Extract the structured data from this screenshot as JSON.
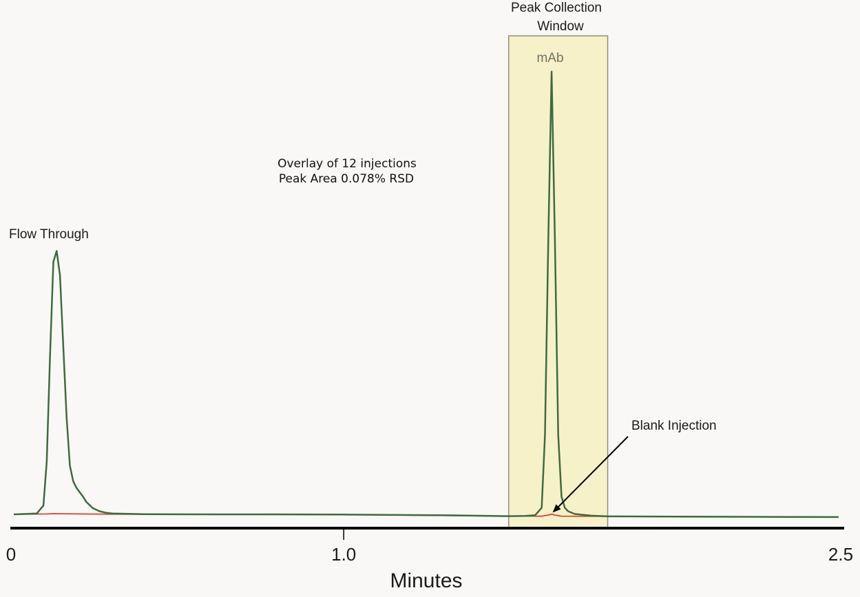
{
  "chart_data": {
    "type": "line",
    "title": "",
    "xlabel": "Minutes",
    "ylabel": "",
    "xlim": [
      0,
      2.5
    ],
    "x_ticks": [
      {
        "value": 0,
        "label": "0"
      },
      {
        "value": 1.0,
        "label": "1.0"
      },
      {
        "value": 2.5,
        "label": "2.5"
      }
    ],
    "grid": false,
    "legend": "none",
    "annotations": {
      "note_line1": "Overlay of 12 injections",
      "note_line2": "Peak Area 0.078% RSD",
      "window_line1": "Peak Collection",
      "window_line2": "Window",
      "peak_mab": "mAb",
      "peak_flow": "Flow Through",
      "blank": "Blank Injection"
    },
    "collection_window": {
      "start": 1.5,
      "end": 1.8
    },
    "series": [
      {
        "color": "#3d6b3f",
        "x": [
          0.0,
          0.07,
          0.09,
          0.1,
          0.11,
          0.12,
          0.13,
          0.14,
          0.15,
          0.16,
          0.17,
          0.18,
          0.19,
          0.2,
          0.21,
          0.22,
          0.24,
          0.26,
          0.28,
          0.3,
          0.4,
          0.6,
          0.8,
          1.0,
          1.3,
          1.45,
          1.5,
          1.55,
          1.58,
          1.6,
          1.61,
          1.62,
          1.63,
          1.64,
          1.65,
          1.66,
          1.67,
          1.68,
          1.7,
          1.75,
          1.8,
          2.0,
          2.2,
          2.5
        ],
        "y": [
          0.0,
          0.2,
          2.0,
          12.0,
          36.0,
          57.0,
          59.5,
          54.0,
          38.0,
          22.0,
          11.0,
          7.5,
          6.0,
          5.0,
          4.0,
          2.8,
          1.4,
          0.7,
          0.35,
          0.2,
          0.05,
          0.0,
          0.0,
          -0.05,
          -0.2,
          -0.35,
          -0.4,
          -0.35,
          -0.2,
          1.5,
          18.0,
          62.0,
          100.0,
          62.0,
          18.0,
          4.0,
          1.5,
          0.7,
          0.1,
          -0.3,
          -0.45,
          -0.5,
          -0.55,
          -0.6
        ]
      },
      {
        "color": "#d8432f",
        "x": [
          0.0,
          0.1,
          0.12,
          0.2,
          0.3,
          0.5,
          1.0,
          1.5,
          1.6,
          1.62,
          1.63,
          1.64,
          1.66,
          1.8,
          2.5
        ],
        "y": [
          0.0,
          0.1,
          0.15,
          0.1,
          0.05,
          0.0,
          -0.05,
          -0.4,
          -0.4,
          -0.15,
          0.05,
          -0.15,
          -0.4,
          -0.45,
          -0.6
        ]
      }
    ]
  }
}
